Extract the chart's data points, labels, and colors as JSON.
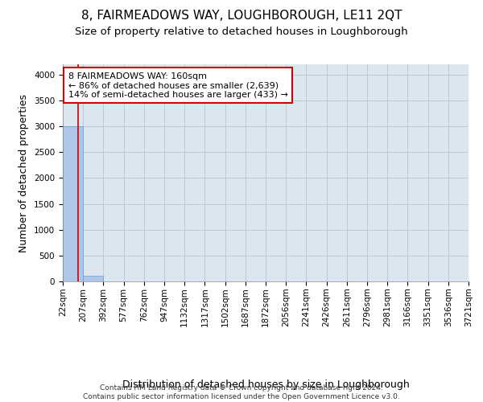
{
  "title": "8, FAIRMEADOWS WAY, LOUGHBOROUGH, LE11 2QT",
  "subtitle": "Size of property relative to detached houses in Loughborough",
  "xlabel": "Distribution of detached houses by size in Loughborough",
  "ylabel": "Number of detached properties",
  "footer_line1": "Contains HM Land Registry data © Crown copyright and database right 2024.",
  "footer_line2": "Contains public sector information licensed under the Open Government Licence v3.0.",
  "bin_edges": [
    22,
    207,
    392,
    577,
    762,
    947,
    1132,
    1317,
    1502,
    1687,
    1872,
    2056,
    2241,
    2426,
    2611,
    2796,
    2981,
    3166,
    3351,
    3536,
    3721
  ],
  "bin_labels": [
    "22sqm",
    "207sqm",
    "392sqm",
    "577sqm",
    "762sqm",
    "947sqm",
    "1132sqm",
    "1317sqm",
    "1502sqm",
    "1687sqm",
    "1872sqm",
    "2056sqm",
    "2241sqm",
    "2426sqm",
    "2611sqm",
    "2796sqm",
    "2981sqm",
    "3166sqm",
    "3351sqm",
    "3536sqm",
    "3721sqm"
  ],
  "bar_heights": [
    3000,
    110,
    0,
    0,
    0,
    0,
    0,
    0,
    0,
    0,
    0,
    0,
    0,
    0,
    0,
    0,
    0,
    0,
    0,
    0
  ],
  "bar_color": "#aec6e8",
  "bar_edge_color": "#5a9fd4",
  "grid_color": "#c0c8d8",
  "background_color": "#dce6f0",
  "annotation_line1": "8 FAIRMEADOWS WAY: 160sqm",
  "annotation_line2": "← 86% of detached houses are smaller (2,639)",
  "annotation_line3": "14% of semi-detached houses are larger (433) →",
  "vline_x": 160,
  "vline_color": "#cc0000",
  "annotation_box_color": "#ffffff",
  "annotation_box_edge_color": "#cc0000",
  "ylim": [
    0,
    4200
  ],
  "yticks": [
    0,
    500,
    1000,
    1500,
    2000,
    2500,
    3000,
    3500,
    4000
  ],
  "title_fontsize": 11,
  "subtitle_fontsize": 9.5,
  "xlabel_fontsize": 9,
  "ylabel_fontsize": 9,
  "annotation_fontsize": 8,
  "tick_fontsize": 7.5
}
